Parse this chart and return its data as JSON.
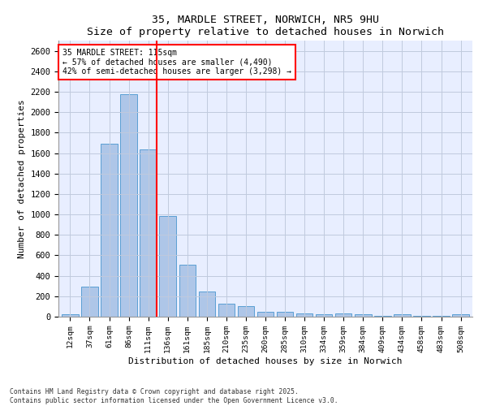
{
  "title1": "35, MARDLE STREET, NORWICH, NR5 9HU",
  "title2": "Size of property relative to detached houses in Norwich",
  "xlabel": "Distribution of detached houses by size in Norwich",
  "ylabel": "Number of detached properties",
  "categories": [
    "12sqm",
    "37sqm",
    "61sqm",
    "86sqm",
    "111sqm",
    "136sqm",
    "161sqm",
    "185sqm",
    "210sqm",
    "235sqm",
    "260sqm",
    "285sqm",
    "310sqm",
    "334sqm",
    "359sqm",
    "384sqm",
    "409sqm",
    "434sqm",
    "458sqm",
    "483sqm",
    "508sqm"
  ],
  "values": [
    25,
    295,
    1690,
    2175,
    1635,
    985,
    510,
    245,
    130,
    100,
    50,
    45,
    30,
    20,
    30,
    25,
    5,
    20,
    5,
    5,
    20
  ],
  "bar_color": "#aec6e8",
  "bar_edge_color": "#5a9fd4",
  "highlight_line_index": 4,
  "annotation_line1": "35 MARDLE STREET: 115sqm",
  "annotation_line2": "← 57% of detached houses are smaller (4,490)",
  "annotation_line3": "42% of semi-detached houses are larger (3,298) →",
  "ylim": [
    0,
    2700
  ],
  "yticks": [
    0,
    200,
    400,
    600,
    800,
    1000,
    1200,
    1400,
    1600,
    1800,
    2000,
    2200,
    2400,
    2600
  ],
  "footnote1": "Contains HM Land Registry data © Crown copyright and database right 2025.",
  "footnote2": "Contains public sector information licensed under the Open Government Licence v3.0.",
  "background_color": "#e8eeff",
  "grid_color": "#c0cadd",
  "fig_width": 6.0,
  "fig_height": 5.0,
  "dpi": 100
}
